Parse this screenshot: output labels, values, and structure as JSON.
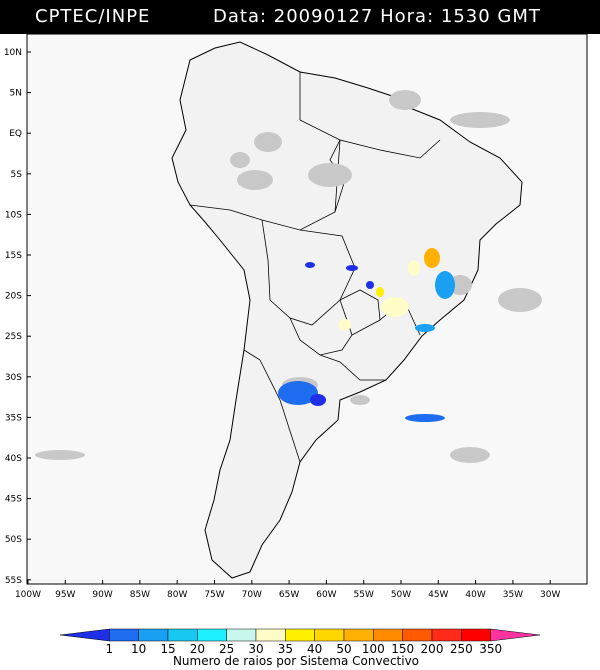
{
  "header": {
    "title": "CPTEC/INPE",
    "datetime": "Data: 20090127 Hora: 1530 GMT"
  },
  "axes": {
    "lat_labels": [
      "10N",
      "5N",
      "EQ",
      "5S",
      "10S",
      "15S",
      "20S",
      "25S",
      "30S",
      "35S",
      "40S",
      "45S",
      "50S",
      "55S"
    ],
    "lon_labels": [
      "100W",
      "95W",
      "90W",
      "85W",
      "80W",
      "75W",
      "70W",
      "65W",
      "60W",
      "55W",
      "50W",
      "45W",
      "40W",
      "35W",
      "30W"
    ]
  },
  "colorbar": {
    "labels": [
      "1",
      "10",
      "15",
      "20",
      "25",
      "30",
      "35",
      "40",
      "50",
      "100",
      "150",
      "200",
      "250",
      "350"
    ],
    "colors": [
      "#1f2fe6",
      "#1e6cf0",
      "#1aa0f2",
      "#18c8f0",
      "#1ff0ff",
      "#c8f7ee",
      "#fffdc7",
      "#fff000",
      "#ffd700",
      "#ffb000",
      "#ff8c00",
      "#ff5a00",
      "#ff2a1a",
      "#ff0000",
      "#ff33a0"
    ],
    "title": "Numero de raios por Sistema Convectivo"
  },
  "palette": {
    "cloud": "#c8c8c8",
    "cloud_dark": "#b0b0b0",
    "land": "#f2f2f2",
    "ocean": "#f8f8f8",
    "border": "#000000"
  }
}
